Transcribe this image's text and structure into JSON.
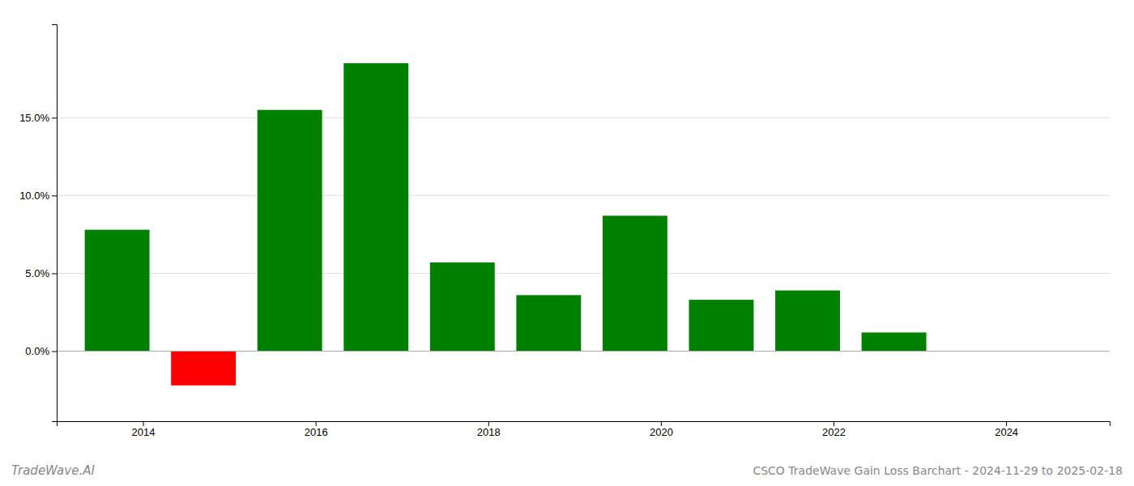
{
  "chart_data": {
    "type": "bar",
    "title": "CSCO TradeWave Gain Loss Barchart - 2024-11-29 to 2025-02-18",
    "annotations": [
      "TradeWave.AI"
    ],
    "x": [
      2013.7,
      2014.7,
      2015.7,
      2016.7,
      2017.7,
      2018.7,
      2019.7,
      2020.7,
      2021.7,
      2022.7
    ],
    "values": [
      7.8,
      -2.2,
      15.5,
      18.5,
      5.7,
      3.6,
      8.7,
      3.3,
      3.9,
      1.2
    ],
    "colors": [
      "#008000",
      "#ff0000",
      "#008000",
      "#008000",
      "#008000",
      "#008000",
      "#008000",
      "#008000",
      "#008000",
      "#008000"
    ],
    "xlim": [
      2013.0,
      2025.2
    ],
    "xticks": [
      2014,
      2016,
      2018,
      2020,
      2022,
      2024
    ],
    "ylim": [
      -4.5,
      21.0
    ],
    "yticks": [
      {
        "value": 0.0,
        "label": "0.0%"
      },
      {
        "value": 5.0,
        "label": "5.0%"
      },
      {
        "value": 10.0,
        "label": "10.0%"
      },
      {
        "value": 15.0,
        "label": "15.0%"
      }
    ],
    "grid": true
  }
}
